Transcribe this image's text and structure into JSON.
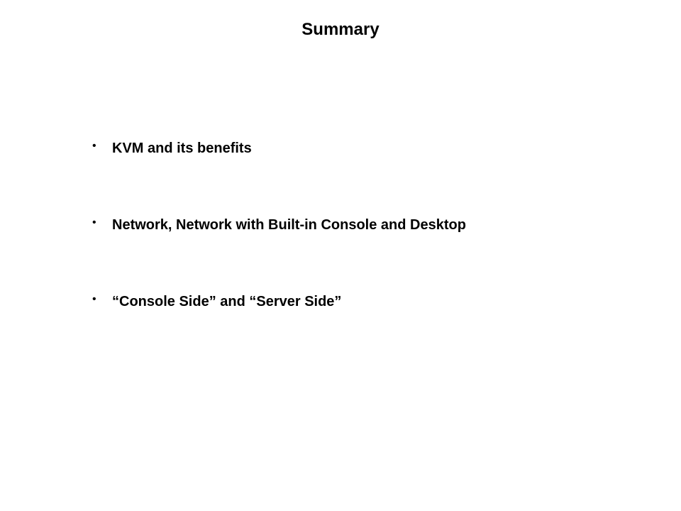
{
  "slide": {
    "title": "Summary",
    "title_fontsize": 24,
    "title_fontweight": "bold",
    "title_color": "#000000",
    "background_color": "#ffffff",
    "bullets": [
      "KVM and its benefits",
      "Network, Network with Built-in Console and Desktop",
      "“Console Side” and “Server Side”"
    ],
    "bullet_fontsize": 20,
    "bullet_fontweight": "bold",
    "bullet_color": "#000000",
    "bullet_marker": "•",
    "bullet_spacing": 82
  }
}
